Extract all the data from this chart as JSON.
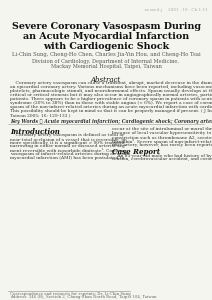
{
  "background_color": "#f5f5f0",
  "header_text": "m med j     2001 · 10 · Ch 1-11",
  "title_line1": "Severe Coronary Vasospasm During",
  "title_line2": "an Acute Myocardial Infarction",
  "title_line3": "with Cardiogenic Shock",
  "authors": "Li-Chin Sung, Cheng-Ho Chen, Charles Jia-Yin Hou, and Cheng-Ho Tsai",
  "affiliation1": "Division of Cardiology, Department of Internal Medicine,",
  "affiliation2": "Mackay Memorial Hospital, Taipei, Taiwan",
  "abstract_title": "Abstract",
  "abstract_body": "    Coronary artery vasospasm can cause a transient, abrupt, marked decrease in the diameter of\nan epicardial coronary artery. Various mechanisms have been reported, including vasoconstriction with\nplatelets, pharmacologic stimuli, and neurohormonal effects. Spasm usually develops at the site of sub-\ncritical or critical stenosis but it may also occur in angiographically normal arteries, particularly in Asian\npatients. There appears to be a higher prevalence of coronary spasm in patients with acute coronary\nsyndrome (20% to 38%) than in those with stable angina (< 6%). We report a case of coronary artery\nspasm of the non-infarct-related arteries during an acute myocardial infarction with cardiogenic shock.\nThis possibility should be kept in mind so that it can be properly managed if present. ( J Intern Med\nTaiwan 2005; 16: 129-133 )",
  "keywords_line": "Key Words ： Acute myocardial infarction; Cardiogenic shock; Coronary artery vasospasm",
  "intro_title": "Introduction",
  "intro_body": "    Coronary artery vasospasm is defined as total or\nnear-total occlusion of a vessel that is reversible, or\nmore specifically, it is a significant > 90% transient\nnarrowing in either normal or diseased arterial seg-\nment reversible with isosorbide dinitrate¹. Coronary\nvasospasm of infarct-related arteries during an acute\nmyocardial infarction (AMI) has been postulated to",
  "right_col_body": "occur at the site of intraluminal or mural thrombosis\nbecause of local vascular hypersensitivity to stimuli of\nconstriction such as thromboxane A2, serotonin, and\nthrombin². Severe spasm of non-infarct-related coro-\nnary artery, however, has rarely been reported.",
  "case_report_title": "Case Report",
  "case_report_body": "    An 83-year-old male who had history of hyper-\ntension, cerebrovascular accident, and coronary",
  "footer_text": "Correspondence and requests for reprints: Dr. Li-Chin Sung",
  "footer_addr": "Address: 346 (B), Section 2, Chung-Shan North Road, Taipei 104, Taiwan"
}
